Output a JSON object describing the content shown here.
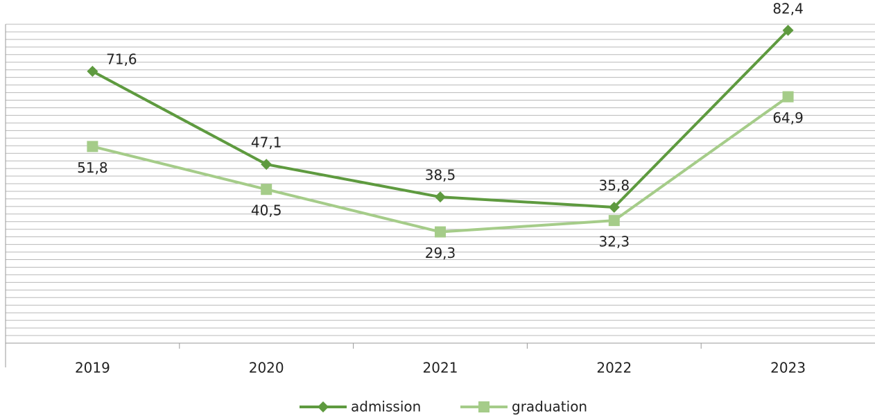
{
  "chart_data": {
    "type": "line",
    "categories": [
      "2019",
      "2020",
      "2021",
      "2022",
      "2023"
    ],
    "series": [
      {
        "name": "admission",
        "color": "#5e9a3f",
        "marker": "diamond",
        "values": [
          71.6,
          47.1,
          38.5,
          35.8,
          82.4
        ],
        "value_labels": [
          "71,6",
          "47,1",
          "38,5",
          "35,8",
          "82,4"
        ]
      },
      {
        "name": "graduation",
        "color": "#a5cc89",
        "marker": "square",
        "values": [
          51.8,
          40.5,
          29.3,
          32.3,
          64.9
        ],
        "value_labels": [
          "51,8",
          "40,5",
          "29,3",
          "32,3",
          "64,9"
        ]
      }
    ],
    "ylim": [
      0,
      84
    ],
    "yticks": [
      0,
      2,
      4,
      6,
      8,
      10,
      12,
      14,
      16,
      18,
      20,
      22,
      24,
      26,
      28,
      30,
      32,
      34,
      36,
      38,
      40,
      42,
      44,
      46,
      48,
      50,
      52,
      54,
      56,
      58,
      60,
      62,
      64,
      66,
      68,
      70,
      72,
      74,
      76,
      78,
      80,
      82,
      84
    ],
    "grid": true,
    "legend": "bottom"
  }
}
